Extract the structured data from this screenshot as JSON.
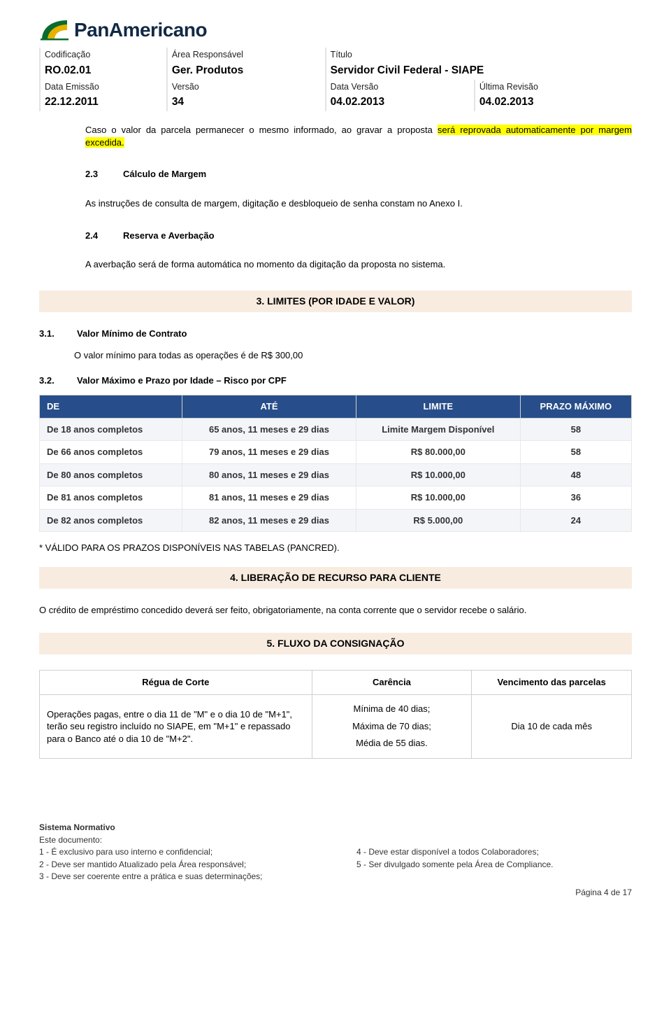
{
  "logo": {
    "text": "PanAmericano"
  },
  "meta": {
    "labels": {
      "cod": "Codificação",
      "area": "Área Responsável",
      "titulo": "Título",
      "emissao": "Data Emissão",
      "versao": "Versão",
      "dataversao": "Data Versão",
      "ultima": "Última Revisão"
    },
    "values": {
      "cod": "RO.02.01",
      "area": "Ger. Produtos",
      "titulo": "Servidor Civil Federal - SIAPE",
      "emissao": "22.12.2011",
      "versao": "34",
      "dataversao": "04.02.2013",
      "ultima": "04.02.2013"
    }
  },
  "intro": {
    "pre": "Caso o valor da parcela permanecer o mesmo informado, ao gravar a proposta ",
    "hl": "será reprovada automaticamente por margem excedida."
  },
  "s23": {
    "num": "2.3",
    "title": "Cálculo de Margem",
    "body": "As instruções de consulta de margem, digitação e desbloqueio de senha constam no Anexo I."
  },
  "s24": {
    "num": "2.4",
    "title": "Reserva e Averbação",
    "body": "A averbação será de forma automática no momento da digitação da proposta no sistema."
  },
  "section3": {
    "title": "3.  LIMITES (POR IDADE E VALOR)"
  },
  "s31": {
    "num": "3.1.",
    "title": "Valor Mínimo de Contrato",
    "body": "O valor mínimo para todas as operações é de R$ 300,00"
  },
  "s32": {
    "num": "3.2.",
    "title": "Valor Máximo e Prazo por Idade – Risco por CPF"
  },
  "limits": {
    "headers": {
      "de": "DE",
      "ate": "ATÉ",
      "limite": "LIMITE",
      "prazo": "PRAZO MÁXIMO"
    },
    "header_bg": "#274e8a",
    "header_fg": "#ffffff",
    "row_alt_bg": "#f3f5f9",
    "rows": [
      {
        "de": "De 18 anos completos",
        "ate": "65 anos, 11 meses e 29 dias",
        "limite": "Limite Margem Disponível",
        "prazo": "58"
      },
      {
        "de": "De 66 anos completos",
        "ate": "79 anos, 11 meses e 29 dias",
        "limite": "R$ 80.000,00",
        "prazo": "58"
      },
      {
        "de": "De 80 anos completos",
        "ate": "80 anos, 11 meses e 29 dias",
        "limite": "R$ 10.000,00",
        "prazo": "48"
      },
      {
        "de": "De 81 anos completos",
        "ate": "81 anos, 11 meses e 29 dias",
        "limite": "R$ 10.000,00",
        "prazo": "36"
      },
      {
        "de": "De 82 anos completos",
        "ate": "82 anos, 11 meses e 29 dias",
        "limite": "R$ 5.000,00",
        "prazo": "24"
      }
    ]
  },
  "note3": "* VÁLIDO PARA OS PRAZOS DISPONÍVEIS NAS TABELAS (PANCRED).",
  "section4": {
    "title": "4.  LIBERAÇÃO DE RECURSO PARA CLIENTE",
    "body": "O crédito de empréstimo concedido deverá ser feito, obrigatoriamente, na conta corrente que o servidor recebe o salário."
  },
  "section5": {
    "title": "5. FLUXO DA CONSIGNAÇÃO"
  },
  "fluxo": {
    "headers": {
      "regua": "Régua de Corte",
      "carencia": "Carência",
      "venc": "Vencimento das parcelas"
    },
    "row": {
      "regua": "Operações pagas, entre o dia  11 de \"M\" e o dia  10 de \"M+1\", terão seu registro incluído no SIAPE, em \"M+1\" e repassado para o Banco até o dia 10 de \"M+2\".",
      "c1": "Mínima de 40 dias;",
      "c2": "Máxima de 70 dias;",
      "c3": "Média de 55 dias.",
      "venc": "Dia  10 de cada mês"
    }
  },
  "footer": {
    "title": "Sistema Normativo",
    "sub": "Este documento:",
    "left": [
      "1 - É exclusivo para uso interno e confidencial;",
      "2 - Deve ser mantido Atualizado pela Área responsável;",
      "3 - Deve ser coerente entre a prática e suas determinações;"
    ],
    "right": [
      "4 - Deve estar disponível a todos Colaboradores;",
      "5 - Ser divulgado somente pela Área de Compliance."
    ],
    "page": "Página 4 de 17"
  }
}
